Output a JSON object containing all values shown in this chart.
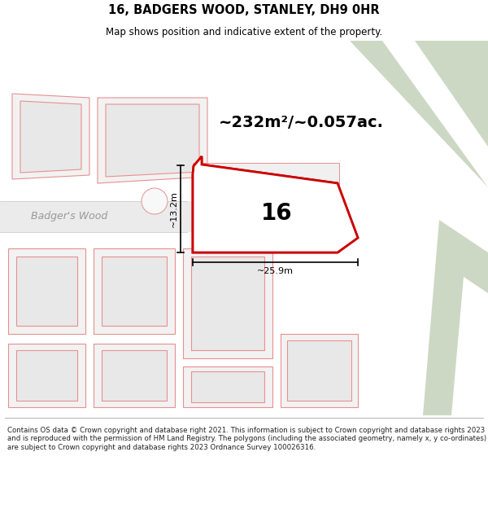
{
  "title": "16, BADGERS WOOD, STANLEY, DH9 0HR",
  "subtitle": "Map shows position and indicative extent of the property.",
  "footer": "Contains OS data © Crown copyright and database right 2021. This information is subject to Crown copyright and database rights 2023 and is reproduced with the permission of HM Land Registry. The polygons (including the associated geometry, namely x, y co-ordinates) are subject to Crown copyright and database rights 2023 Ordnance Survey 100026316.",
  "area_text": "~232m²/~0.057ac.",
  "width_label": "~25.9m",
  "height_label": "~13.2m",
  "number_label": "16",
  "green_color": "#cdd8c4",
  "green_color2": "#d5e0cc",
  "white_color": "#ffffff",
  "road_fill": "#ebebeb",
  "plot_edge": "#e89090",
  "plot_fill": "#eeeeee",
  "plot_inner_fill": "#e8e8e8",
  "highlight_edge": "#cc0000",
  "highlight_fill": "#ffffff",
  "street_label": "Badger's Wood",
  "title_fontsize": 10.5,
  "subtitle_fontsize": 8.5,
  "footer_fontsize": 6.2,
  "area_fontsize": 14,
  "number_fontsize": 20
}
